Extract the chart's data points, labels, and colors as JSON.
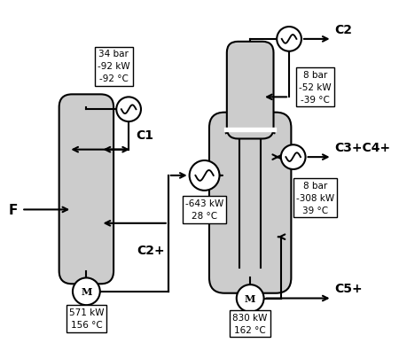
{
  "bg_color": "#ffffff",
  "lc": "#000000",
  "vessel_fill": "#cccccc",
  "lw": 1.5,
  "box1_text": "34 bar\n-92 kW\n-92 °C",
  "box2_text": "-643 kW\n28 °C",
  "box3_text": "571 kW\n156 °C",
  "box4_text": "830 kW\n162 °C",
  "box5_text": "8 bar\n-52 kW\n-39 °C",
  "box6_text": "8 bar\n-308 kW\n39 °C",
  "label_F": "F",
  "label_C1": "C1",
  "label_C2plus": "C2+",
  "label_C2": "C2",
  "label_C3C4": "C3+C4+",
  "label_C5plus": "C5+"
}
